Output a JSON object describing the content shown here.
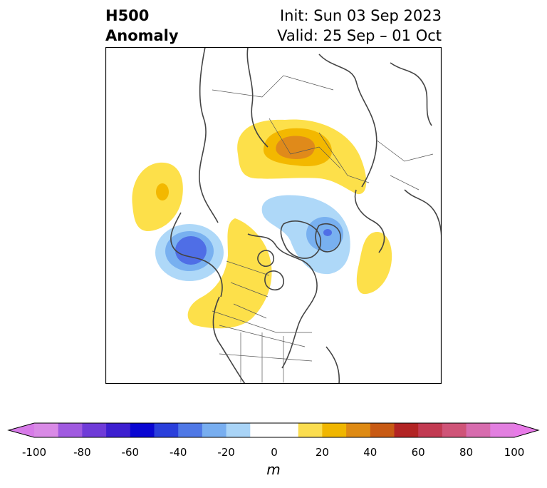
{
  "title": {
    "left_line1": "H500",
    "left_line2": "Anomaly",
    "right_line1": "Init: Sun 03 Sep 2023",
    "right_line2": "Valid: 25 Sep – 01 Oct"
  },
  "colorbar": {
    "unit": "m",
    "tick_labels": [
      "-100",
      "-80",
      "-60",
      "-40",
      "-20",
      "0",
      "20",
      "40",
      "60",
      "80",
      "100"
    ],
    "bin_colors": [
      "#d98ae6",
      "#a05ae0",
      "#6f3bd8",
      "#3d1fd0",
      "#0a06d2",
      "#2a3fdb",
      "#4f78e6",
      "#78aef0",
      "#a9d4f7",
      "#ffffff",
      "#ffffff",
      "#fbdd4f",
      "#f0b600",
      "#de8a14",
      "#c85a14",
      "#b22424",
      "#c23a52",
      "#cf5478",
      "#d76cae",
      "#e27fe0"
    ],
    "under_color": "#d77ae8",
    "over_color": "#e87ae8"
  },
  "map": {
    "projection": "north polar stereographic",
    "positive_color_light": "#fde04a",
    "positive_color_mid": "#f3b800",
    "positive_color_strong": "#e08a1a",
    "negative_color_light": "#aed8f8",
    "negative_color_mid": "#78b0f0",
    "negative_color_strong": "#4f6ee6"
  }
}
